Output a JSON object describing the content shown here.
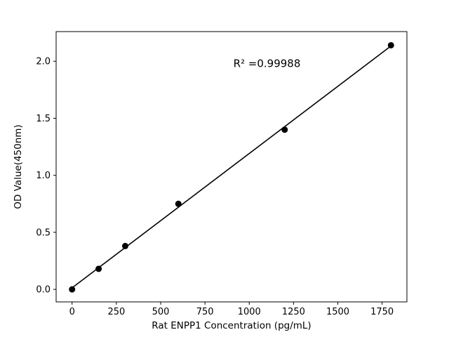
{
  "chart_data": {
    "type": "scatter",
    "title": "",
    "xlabel": "Rat ENPP1 Concentration (pg/mL)",
    "ylabel": "OD Value(450nm)",
    "x": [
      0,
      150,
      300,
      600,
      1200,
      1800
    ],
    "y": [
      0.0,
      0.18,
      0.38,
      0.75,
      1.4,
      2.14
    ],
    "fit_line": true,
    "annotation": {
      "text": "R² =0.99988",
      "x": 1100,
      "y": 1.95
    },
    "xlim": [
      -90,
      1890
    ],
    "ylim": [
      -0.11,
      2.26
    ],
    "xticks": [
      {
        "value": 0,
        "label": "0"
      },
      {
        "value": 250,
        "label": "250"
      },
      {
        "value": 500,
        "label": "500"
      },
      {
        "value": 750,
        "label": "750"
      },
      {
        "value": 1000,
        "label": "1000"
      },
      {
        "value": 1250,
        "label": "1250"
      },
      {
        "value": 1500,
        "label": "1500"
      },
      {
        "value": 1750,
        "label": "1750"
      }
    ],
    "yticks": [
      {
        "value": 0.0,
        "label": "0.0"
      },
      {
        "value": 0.5,
        "label": "0.5"
      },
      {
        "value": 1.0,
        "label": "1.0"
      },
      {
        "value": 1.5,
        "label": "1.5"
      },
      {
        "value": 2.0,
        "label": "2.0"
      }
    ],
    "grid": false,
    "legend": null,
    "colors": {
      "marker": "#000000",
      "line": "#000000",
      "spine": "#000000",
      "background": "#ffffff"
    }
  }
}
